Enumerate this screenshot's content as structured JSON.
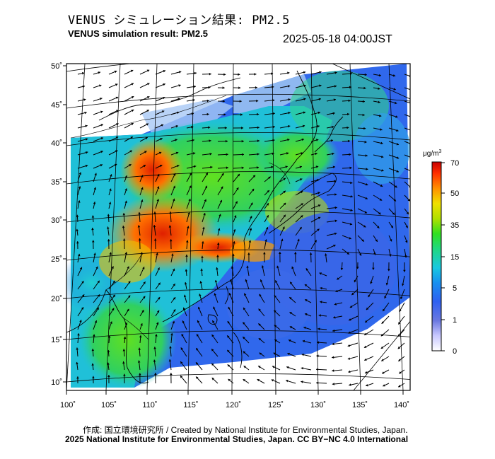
{
  "header": {
    "title_jp": "VENUS シミュレーション結果: PM2.5",
    "title_en": "VENUS simulation result: PM2.5",
    "timestamp": "2025-05-18 04:00JST"
  },
  "map": {
    "lat_labels": [
      "50˚",
      "45˚",
      "40˚",
      "35˚",
      "30˚",
      "25˚",
      "20˚",
      "15˚",
      "10˚"
    ],
    "lon_labels": [
      "100˚",
      "105˚",
      "110˚",
      "115˚",
      "120˚",
      "125˚",
      "130˚",
      "135˚",
      "140˚"
    ]
  },
  "colorbar": {
    "unit_main": "μg/m",
    "unit_sup": "3",
    "ticks": [
      "70",
      "50",
      "35",
      "15",
      "5",
      "1",
      "0"
    ],
    "colors": [
      "#f0f0ff",
      "#b4b4ff",
      "#5c6ce0",
      "#3060f0",
      "#18a8e8",
      "#20d8c0",
      "#30e030",
      "#a0e000",
      "#f0e000",
      "#ff9000",
      "#ff3000",
      "#d00000"
    ]
  },
  "footer": {
    "credit": "作成: 国立環境研究所 / Created by National Institute for Environmental Studies, Japan.",
    "copyright": "2025 National Institute for Environmental Studies, Japan. CC BY−NC 4.0 International"
  }
}
